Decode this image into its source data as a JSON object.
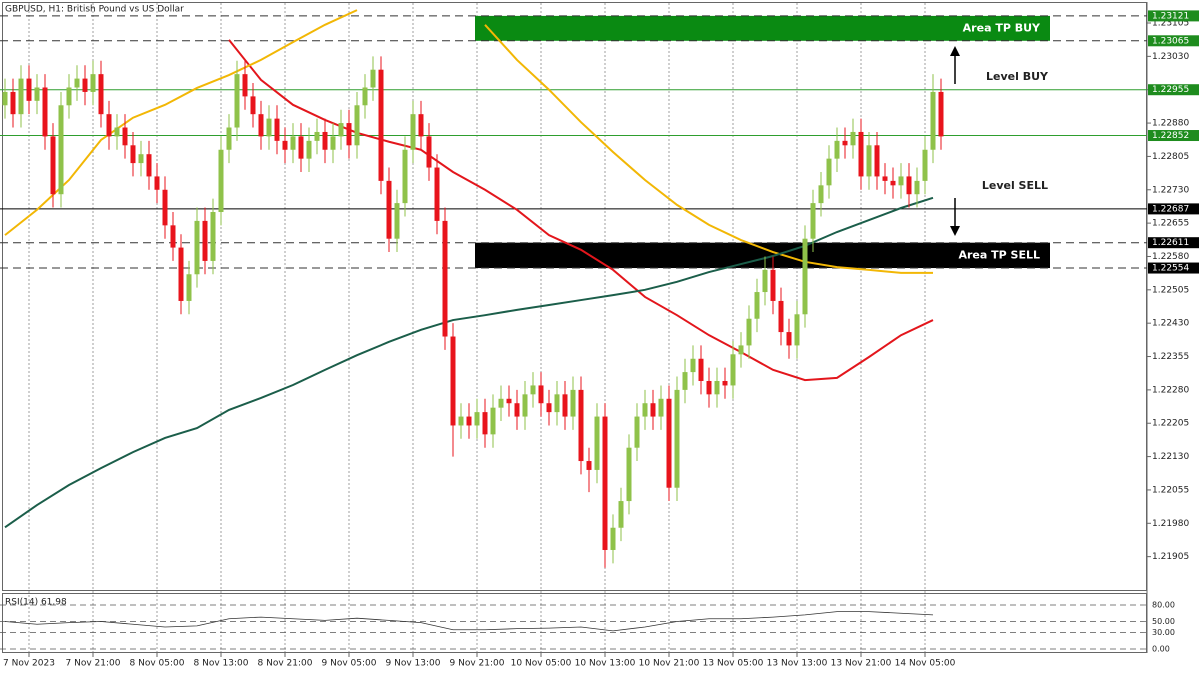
{
  "chart_data": {
    "type": "candlestick",
    "title": "GBPUSD, H1:  British Pound vs US Dollar",
    "up_color": "#8fc24a",
    "down_color": "#e8141c",
    "ylim": [
      1.2183,
      1.2315
    ],
    "yticks": [
      1.23105,
      {
        "value": 1.2303,
        "label": "1.23030"
      },
      1.22955,
      {
        "value": 1.2288,
        "label": "1.22880"
      },
      1.22805,
      {
        "value": 1.2273,
        "label": "1.22730"
      },
      1.22655,
      {
        "value": 1.2258,
        "label": "1.22580"
      },
      1.22505,
      {
        "value": 1.2243,
        "label": "1.22430"
      },
      1.22355,
      {
        "value": 1.2228,
        "label": "1.22280"
      },
      1.22205,
      {
        "value": 1.2213,
        "label": "1.22130"
      },
      1.22055,
      {
        "value": 1.2198,
        "label": "1.21980"
      },
      1.21905
    ],
    "grid": true,
    "categories": [
      null,
      null,
      null,
      "7 Nov 2023",
      null,
      null,
      null,
      null,
      null,
      null,
      null,
      "7 Nov 21:00",
      null,
      null,
      null,
      null,
      null,
      null,
      null,
      "8 Nov 05:00",
      null,
      null,
      null,
      null,
      null,
      null,
      null,
      "8 Nov 13:00",
      null,
      null,
      null,
      null,
      null,
      null,
      null,
      "8 Nov 21:00",
      null,
      null,
      null,
      null,
      null,
      null,
      null,
      "9 Nov 05:00",
      null,
      null,
      null,
      null,
      null,
      null,
      null,
      "9 Nov 13:00",
      null,
      null,
      null,
      null,
      null,
      null,
      null,
      "9 Nov 21:00",
      null,
      null,
      null,
      null,
      null,
      null,
      null,
      "10 Nov 05:00",
      null,
      null,
      null,
      null,
      null,
      null,
      null,
      "10 Nov 13:00",
      null,
      null,
      null,
      null,
      null,
      null,
      null,
      "10 Nov 21:00",
      null,
      null,
      null,
      null,
      null,
      null,
      null,
      "13 Nov 05:00",
      null,
      null,
      null,
      null,
      null,
      null,
      null,
      "13 Nov 13:00",
      null,
      null,
      null,
      null,
      null,
      null,
      null,
      "13 Nov 21:00",
      null,
      null,
      null,
      null,
      null,
      null,
      null,
      "14 Nov 05:00",
      null,
      null
    ],
    "open": [
      1.2292,
      1.2295,
      1.229,
      1.2298,
      1.2293,
      1.2296,
      1.2285,
      1.2272,
      1.2292,
      1.2296,
      1.2298,
      1.2295,
      1.2299,
      1.229,
      1.2285,
      1.2287,
      1.2283,
      1.2279,
      1.2281,
      1.2276,
      1.2273,
      1.2265,
      1.226,
      1.2248,
      1.2254,
      1.2266,
      1.2257,
      1.2268,
      1.2282,
      1.2287,
      1.2299,
      1.2294,
      1.229,
      1.2285,
      1.2289,
      1.2284,
      1.2282,
      1.2285,
      1.228,
      1.2284,
      1.2286,
      1.2282,
      1.2285,
      1.2288,
      1.2283,
      1.2292,
      1.2296,
      1.23,
      1.2275,
      1.2262,
      1.227,
      1.2282,
      1.229,
      1.2285,
      1.2278,
      1.2266,
      1.224,
      1.222,
      1.2222,
      1.222,
      1.2223,
      1.2218,
      1.2224,
      1.2226,
      1.2225,
      1.2222,
      1.2227,
      1.2229,
      1.2225,
      1.2223,
      1.2227,
      1.2222,
      1.2228,
      1.2212,
      1.221,
      1.2222,
      1.2192,
      1.2197,
      1.2203,
      1.2215,
      1.2222,
      1.2225,
      1.2222,
      1.2226,
      1.2206,
      1.2228,
      1.2232,
      1.2235,
      1.223,
      1.2227,
      1.223,
      1.2229,
      1.2236,
      1.2238,
      1.2244,
      1.225,
      1.2255,
      1.2248,
      1.2241,
      1.2238,
      1.2245,
      1.2262,
      1.227,
      1.2274,
      1.228,
      1.2284,
      1.2283,
      1.2286,
      1.2276,
      1.2283,
      1.2276,
      1.2275,
      1.2274,
      1.2276,
      1.2272,
      1.2275,
      1.2282,
      1.2295
    ],
    "high": [
      1.2298,
      1.2298,
      1.2301,
      1.2301,
      1.2299,
      1.2299,
      1.2288,
      1.2295,
      1.2299,
      1.2301,
      1.2301,
      1.2302,
      1.2302,
      1.2293,
      1.229,
      1.229,
      1.2286,
      1.2284,
      1.2284,
      1.2279,
      1.2276,
      1.2268,
      1.2263,
      1.2257,
      1.2269,
      1.2269,
      1.2271,
      1.2285,
      1.229,
      1.2302,
      1.2302,
      1.2297,
      1.2293,
      1.2292,
      1.2292,
      1.2287,
      1.2288,
      1.2288,
      1.2287,
      1.2289,
      1.2289,
      1.2288,
      1.2291,
      1.2291,
      1.2295,
      1.2299,
      1.2303,
      1.2303,
      1.2278,
      1.2273,
      1.2285,
      1.2293,
      1.2293,
      1.2288,
      1.2281,
      1.2269,
      1.2243,
      1.2225,
      1.2225,
      1.2226,
      1.2226,
      1.2227,
      1.2229,
      1.2229,
      1.2228,
      1.223,
      1.2232,
      1.2232,
      1.2228,
      1.223,
      1.223,
      1.2231,
      1.2231,
      1.2215,
      1.2225,
      1.2225,
      1.22,
      1.2206,
      1.2218,
      1.2225,
      1.2228,
      1.2228,
      1.2229,
      1.2229,
      1.2231,
      1.2235,
      1.2238,
      1.2238,
      1.2233,
      1.2233,
      1.2233,
      1.2239,
      1.2241,
      1.2247,
      1.2253,
      1.2258,
      1.2258,
      1.2251,
      1.2244,
      1.2248,
      1.2265,
      1.2273,
      1.2277,
      1.2283,
      1.2287,
      1.2287,
      1.2289,
      1.2289,
      1.2286,
      1.2286,
      1.2279,
      1.2278,
      1.2279,
      1.2279,
      1.2278,
      1.2285,
      1.2299,
      1.2298
    ],
    "low": [
      1.2289,
      1.2287,
      1.2287,
      1.229,
      1.229,
      1.2282,
      1.2269,
      1.2269,
      1.2289,
      1.2293,
      1.2292,
      1.2292,
      1.2287,
      1.2282,
      1.2282,
      1.228,
      1.2276,
      1.2276,
      1.2273,
      1.227,
      1.2262,
      1.2257,
      1.2245,
      1.2245,
      1.2251,
      1.2254,
      1.2254,
      1.2265,
      1.2279,
      1.2284,
      1.2291,
      1.2287,
      1.2282,
      1.2282,
      1.2281,
      1.2279,
      1.2279,
      1.2277,
      1.2277,
      1.2281,
      1.2279,
      1.2279,
      1.2282,
      1.228,
      1.228,
      1.2289,
      1.2293,
      1.2272,
      1.2259,
      1.2259,
      1.2267,
      1.2279,
      1.2282,
      1.2275,
      1.2263,
      1.2237,
      1.2213,
      1.2217,
      1.2217,
      1.2217,
      1.2215,
      1.2215,
      1.2221,
      1.2222,
      1.2219,
      1.2219,
      1.2224,
      1.2222,
      1.222,
      1.222,
      1.2219,
      1.2219,
      1.2209,
      1.2205,
      1.2207,
      1.2188,
      1.2189,
      1.2194,
      1.22,
      1.2212,
      1.2219,
      1.2219,
      1.2219,
      1.2203,
      1.2203,
      1.2225,
      1.2229,
      1.2227,
      1.2224,
      1.2224,
      1.2226,
      1.2226,
      1.2233,
      1.2235,
      1.2241,
      1.2247,
      1.2245,
      1.2238,
      1.2235,
      1.2235,
      1.2242,
      1.2259,
      1.2267,
      1.2271,
      1.2277,
      1.228,
      1.228,
      1.2273,
      1.2273,
      1.2273,
      1.2272,
      1.2271,
      1.2271,
      1.2269,
      1.2269,
      1.2272,
      1.2279,
      1.2282
    ],
    "close": [
      1.2295,
      1.229,
      1.2298,
      1.2293,
      1.2296,
      1.2285,
      1.2272,
      1.2292,
      1.2296,
      1.2298,
      1.2295,
      1.2299,
      1.229,
      1.2285,
      1.2287,
      1.2283,
      1.2279,
      1.2281,
      1.2276,
      1.2273,
      1.2265,
      1.226,
      1.2248,
      1.2254,
      1.2266,
      1.2257,
      1.2268,
      1.2282,
      1.2287,
      1.2299,
      1.2294,
      1.229,
      1.2285,
      1.2289,
      1.2284,
      1.2282,
      1.2285,
      1.228,
      1.2284,
      1.2286,
      1.2282,
      1.2285,
      1.2288,
      1.2283,
      1.2292,
      1.2296,
      1.23,
      1.2275,
      1.2262,
      1.227,
      1.2282,
      1.229,
      1.2285,
      1.2278,
      1.2266,
      1.224,
      1.222,
      1.2222,
      1.222,
      1.2223,
      1.2218,
      1.2224,
      1.2226,
      1.2225,
      1.2222,
      1.2227,
      1.2229,
      1.2225,
      1.2223,
      1.2227,
      1.2222,
      1.2228,
      1.2212,
      1.221,
      1.2222,
      1.2192,
      1.2197,
      1.2203,
      1.2215,
      1.2222,
      1.2225,
      1.2222,
      1.2226,
      1.2206,
      1.2228,
      1.2232,
      1.2235,
      1.223,
      1.2227,
      1.223,
      1.2229,
      1.2236,
      1.2238,
      1.2244,
      1.225,
      1.2255,
      1.2248,
      1.2241,
      1.2238,
      1.2245,
      1.2262,
      1.227,
      1.2274,
      1.228,
      1.2284,
      1.2283,
      1.2286,
      1.2276,
      1.2283,
      1.2276,
      1.2275,
      1.2274,
      1.2276,
      1.2272,
      1.2275,
      1.2282,
      1.2295,
      1.2285
    ],
    "ma_step": 4,
    "ma_series": [
      {
        "color": "#e3161c",
        "values": [
          null,
          null,
          null,
          null,
          null,
          null,
          null,
          1.23067,
          1.22977,
          1.22921,
          1.22887,
          1.22858,
          1.22838,
          1.2282,
          1.2277,
          1.2273,
          1.22685,
          1.22628,
          1.22595,
          1.2255,
          1.22489,
          1.22448,
          1.22403,
          1.22365,
          1.22325,
          1.22302,
          1.22307,
          1.22354,
          1.22403,
          1.22437
        ]
      },
      {
        "color": "#f2b705",
        "values": [
          1.22628,
          1.22685,
          1.22752,
          1.22842,
          1.22892,
          1.22921,
          1.22959,
          1.22988,
          1.23022,
          1.23062,
          1.23101,
          1.23134,
          null,
          null,
          null,
          1.23101,
          1.23022,
          1.22955,
          1.22882,
          1.22815,
          1.22752,
          1.22696,
          1.22651,
          1.22617,
          1.2259,
          1.22568,
          1.22556,
          1.2255,
          1.22543,
          1.22543
        ]
      },
      {
        "color": "#1b5e4a",
        "values": [
          1.21971,
          1.22021,
          1.22066,
          1.22104,
          1.2214,
          1.22172,
          1.22194,
          1.22235,
          1.22262,
          1.22291,
          1.22325,
          1.22358,
          1.22388,
          1.22415,
          1.22437,
          1.22448,
          1.2246,
          1.22471,
          1.22482,
          1.22493,
          1.22505,
          1.22523,
          1.22545,
          1.22563,
          1.22581,
          1.22604,
          1.22635,
          1.22662,
          1.22689,
          1.22712
        ]
      }
    ],
    "levels": [
      {
        "value": 1.23121,
        "color": "#333333",
        "style": "dashed",
        "label_bg": "#1e8c1e"
      },
      {
        "value": 1.23065,
        "color": "#333333",
        "style": "dashed",
        "label_bg": "#1e8c1e"
      },
      {
        "value": 1.22955,
        "color": "#2e9e2e",
        "style": "solid",
        "label_bg": "#1e8c1e"
      },
      {
        "value": 1.22852,
        "color": "#2e9e2e",
        "style": "solid",
        "label_bg": "#1e8c1e"
      },
      {
        "value": 1.22687,
        "color": "#000000",
        "style": "solid",
        "label_bg": "#000000"
      },
      {
        "value": 1.22611,
        "color": "#333333",
        "style": "dashed",
        "label_bg": "#000000"
      },
      {
        "value": 1.22554,
        "color": "#333333",
        "style": "dashed",
        "label_bg": "#000000"
      }
    ],
    "areas": [
      {
        "label": "Area TP BUY",
        "top": 1.23121,
        "bottom": 1.23065,
        "color": "#0a8a12"
      },
      {
        "label": "Area TP SELL",
        "top": 1.22611,
        "bottom": 1.22554,
        "color": "#000000"
      }
    ],
    "annotations": [
      "Level BUY",
      "Level SELL"
    ],
    "rsi": {
      "title": "RSI(14) 61.98",
      "ylim": [
        0,
        100
      ],
      "yticks": [
        {
          "value": 80,
          "label": "80.00"
        },
        {
          "value": 50,
          "label": "50.00"
        },
        {
          "value": 30,
          "label": "30.00"
        },
        {
          "value": 0,
          "label": "0.00"
        }
      ],
      "values": [
        50,
        45,
        48,
        50,
        45,
        40,
        42,
        55,
        58,
        55,
        52,
        56,
        52,
        48,
        35,
        35,
        37,
        38,
        40,
        33,
        40,
        50,
        55,
        55,
        58,
        62,
        68,
        68,
        65,
        62
      ]
    }
  }
}
